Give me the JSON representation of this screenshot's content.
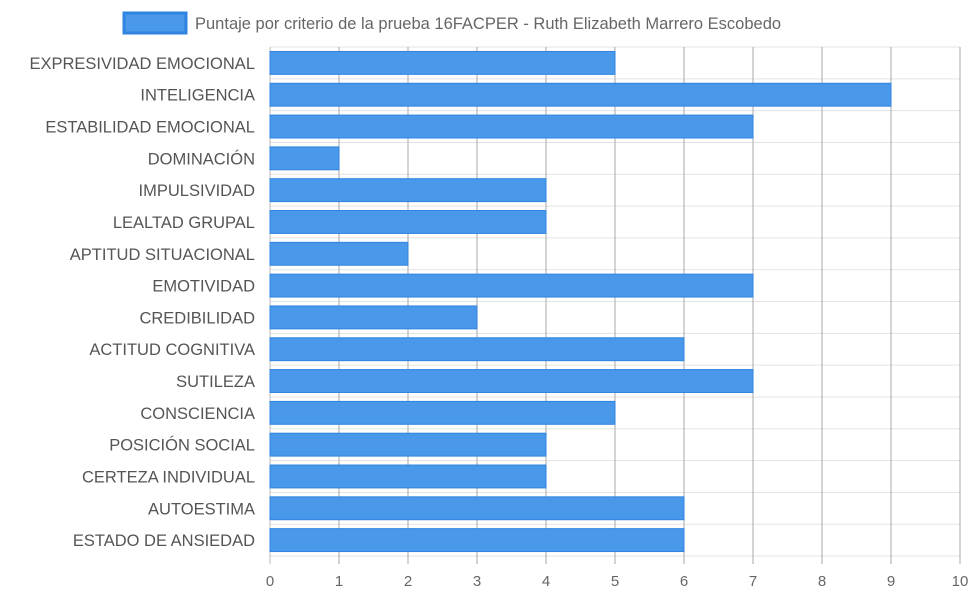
{
  "chart_data": {
    "type": "bar",
    "orientation": "horizontal",
    "categories": [
      "EXPRESIVIDAD EMOCIONAL",
      "INTELIGENCIA",
      "ESTABILIDAD EMOCIONAL",
      "DOMINACIÓN",
      "IMPULSIVIDAD",
      "LEALTAD GRUPAL",
      "APTITUD SITUACIONAL",
      "EMOTIVIDAD",
      "CREDIBILIDAD",
      "ACTITUD COGNITIVA",
      "SUTILEZA",
      "CONSCIENCIA",
      "POSICIÓN SOCIAL",
      "CERTEZA INDIVIDUAL",
      "AUTOESTIMA",
      "ESTADO DE ANSIEDAD"
    ],
    "series": [
      {
        "name": "Puntaje por criterio de la prueba 16FACPER - Ruth Elizabeth Marrero Escobedo",
        "values": [
          5,
          9,
          7,
          1,
          4,
          4,
          2,
          7,
          3,
          6,
          7,
          5,
          4,
          4,
          6,
          6
        ],
        "color": "#4a98e9",
        "border_color": "#2f84e0"
      }
    ],
    "xlim": [
      0,
      10
    ],
    "xticks": [
      "0",
      "1",
      "2",
      "3",
      "4",
      "5",
      "6",
      "7",
      "8",
      "9",
      "10"
    ],
    "grid": true,
    "legend_position": "top"
  }
}
